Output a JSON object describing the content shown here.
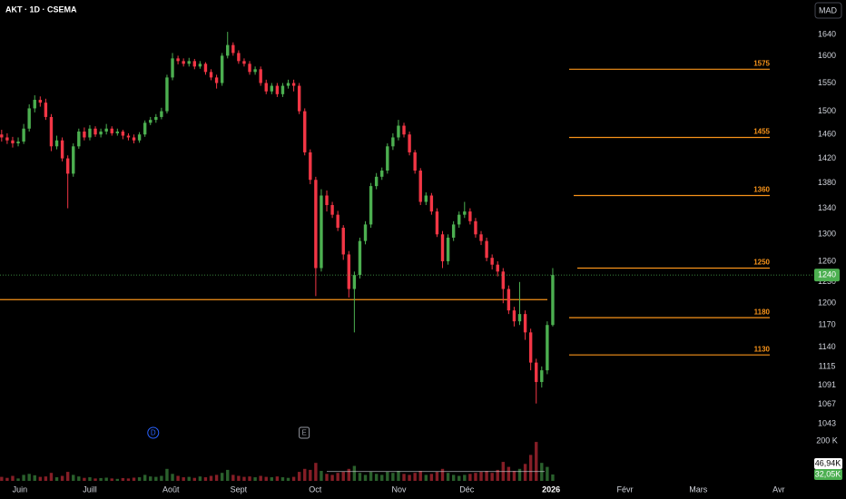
{
  "chart_data": {
    "type": "candlestick",
    "title": "AKT · 1D · CSEMA",
    "currency": "MAD",
    "log_scale": true,
    "ylim": [
      1029,
      1707
    ],
    "yticks": [
      1640,
      1600,
      1550,
      1500,
      1460,
      1420,
      1380,
      1340,
      1300,
      1260,
      1230,
      1200,
      1170,
      1140,
      1115,
      1091,
      1067,
      1043
    ],
    "xlim": [
      -0.3,
      143
    ],
    "xticks": [
      {
        "value": 3.3,
        "label": "Juin"
      },
      {
        "value": 16,
        "label": "Juill"
      },
      {
        "value": 30.7,
        "label": "Août"
      },
      {
        "value": 43,
        "label": "Sept"
      },
      {
        "value": 56.9,
        "label": "Oct"
      },
      {
        "value": 72.1,
        "label": "Nov"
      },
      {
        "value": 84.4,
        "label": "Déc"
      },
      {
        "value": 99.7,
        "label": "2026"
      },
      {
        "value": 113.1,
        "label": "Févr"
      },
      {
        "value": 126.4,
        "label": "Mars"
      },
      {
        "value": 141,
        "label": "Avr"
      }
    ],
    "up_color": "#4caf50",
    "down_color": "#f23645",
    "open": [
      1460,
      1455,
      1450,
      1445,
      1448,
      1470,
      1505,
      1520,
      1515,
      1490,
      1440,
      1450,
      1420,
      1395,
      1440,
      1465,
      1455,
      1470,
      1460,
      1465,
      1470,
      1462,
      1465,
      1458,
      1455,
      1450,
      1460,
      1480,
      1485,
      1490,
      1500,
      1560,
      1595,
      1590,
      1585,
      1590,
      1580,
      1585,
      1570,
      1560,
      1550,
      1600,
      1620,
      1605,
      1590,
      1585,
      1570,
      1575,
      1550,
      1535,
      1545,
      1530,
      1545,
      1550,
      1545,
      1500,
      1430,
      1385,
      1250,
      1360,
      1345,
      1330,
      1310,
      1270,
      1220,
      1240,
      1290,
      1315,
      1375,
      1390,
      1400,
      1440,
      1455,
      1475,
      1460,
      1430,
      1400,
      1350,
      1360,
      1335,
      1300,
      1260,
      1295,
      1315,
      1330,
      1335,
      1320,
      1300,
      1290,
      1265,
      1255,
      1245,
      1220,
      1190,
      1175,
      1185,
      1160,
      1120,
      1095,
      1110,
      1170
    ],
    "high": [
      1468,
      1462,
      1456,
      1455,
      1478,
      1512,
      1528,
      1526,
      1522,
      1495,
      1458,
      1455,
      1425,
      1445,
      1470,
      1472,
      1476,
      1474,
      1470,
      1478,
      1474,
      1470,
      1468,
      1462,
      1460,
      1464,
      1484,
      1490,
      1495,
      1506,
      1565,
      1605,
      1600,
      1595,
      1596,
      1594,
      1590,
      1588,
      1575,
      1565,
      1605,
      1645,
      1625,
      1610,
      1595,
      1590,
      1580,
      1580,
      1556,
      1550,
      1550,
      1550,
      1556,
      1556,
      1550,
      1505,
      1435,
      1390,
      1370,
      1368,
      1350,
      1336,
      1314,
      1275,
      1245,
      1295,
      1320,
      1380,
      1396,
      1405,
      1445,
      1462,
      1485,
      1480,
      1465,
      1434,
      1404,
      1365,
      1364,
      1340,
      1305,
      1300,
      1320,
      1335,
      1350,
      1340,
      1325,
      1305,
      1295,
      1270,
      1260,
      1250,
      1225,
      1195,
      1230,
      1190,
      1165,
      1125,
      1115,
      1175,
      1250
    ],
    "low": [
      1448,
      1444,
      1438,
      1440,
      1444,
      1465,
      1498,
      1508,
      1485,
      1432,
      1435,
      1415,
      1340,
      1390,
      1436,
      1450,
      1450,
      1456,
      1455,
      1460,
      1458,
      1458,
      1452,
      1450,
      1445,
      1446,
      1456,
      1476,
      1480,
      1486,
      1496,
      1555,
      1584,
      1580,
      1580,
      1575,
      1576,
      1565,
      1555,
      1540,
      1545,
      1595,
      1600,
      1585,
      1580,
      1565,
      1565,
      1545,
      1530,
      1530,
      1525,
      1525,
      1540,
      1535,
      1495,
      1425,
      1378,
      1210,
      1245,
      1335,
      1325,
      1305,
      1262,
      1208,
      1160,
      1235,
      1285,
      1310,
      1370,
      1385,
      1395,
      1434,
      1450,
      1455,
      1425,
      1395,
      1345,
      1345,
      1330,
      1296,
      1250,
      1255,
      1290,
      1310,
      1325,
      1315,
      1295,
      1284,
      1260,
      1248,
      1238,
      1200,
      1185,
      1168,
      1170,
      1150,
      1110,
      1068,
      1088,
      1105,
      1168
    ],
    "close": [
      1455,
      1450,
      1445,
      1448,
      1470,
      1505,
      1520,
      1515,
      1490,
      1440,
      1450,
      1420,
      1395,
      1440,
      1465,
      1455,
      1470,
      1460,
      1465,
      1470,
      1462,
      1465,
      1458,
      1455,
      1450,
      1460,
      1480,
      1485,
      1490,
      1500,
      1560,
      1595,
      1590,
      1585,
      1590,
      1580,
      1585,
      1570,
      1560,
      1550,
      1600,
      1620,
      1605,
      1590,
      1585,
      1570,
      1575,
      1550,
      1535,
      1545,
      1530,
      1545,
      1550,
      1545,
      1500,
      1430,
      1385,
      1250,
      1360,
      1345,
      1330,
      1310,
      1270,
      1220,
      1240,
      1290,
      1315,
      1375,
      1390,
      1400,
      1440,
      1455,
      1475,
      1460,
      1430,
      1400,
      1350,
      1360,
      1335,
      1300,
      1260,
      1295,
      1315,
      1330,
      1335,
      1320,
      1300,
      1290,
      1265,
      1255,
      1245,
      1220,
      1190,
      1175,
      1185,
      1160,
      1120,
      1095,
      1110,
      1170,
      1240
    ],
    "volumes": [
      20000,
      15000,
      25000,
      12000,
      30000,
      35000,
      28000,
      20000,
      22000,
      40000,
      18000,
      25000,
      45000,
      30000,
      22000,
      15000,
      18000,
      12000,
      14000,
      16000,
      12000,
      10000,
      14000,
      12000,
      16000,
      18000,
      30000,
      22000,
      20000,
      25000,
      60000,
      35000,
      25000,
      18000,
      20000,
      15000,
      22000,
      18000,
      25000,
      30000,
      40000,
      55000,
      30000,
      25000,
      20000,
      22000,
      18000,
      25000,
      20000,
      18000,
      22000,
      18000,
      15000,
      20000,
      45000,
      60000,
      55000,
      90000,
      50000,
      35000,
      30000,
      40000,
      45000,
      60000,
      75000,
      40000,
      30000,
      45000,
      35000,
      30000,
      45000,
      40000,
      50000,
      35000,
      30000,
      40000,
      50000,
      30000,
      35000,
      45000,
      60000,
      40000,
      30000,
      25000,
      30000,
      35000,
      40000,
      45000,
      50000,
      40000,
      55000,
      95000,
      70000,
      50000,
      60000,
      85000,
      130000,
      195000,
      90000,
      70000,
      32050
    ],
    "volume_ylim": [
      0,
      210000
    ],
    "volume_yticks": [
      {
        "value": 200000,
        "label": "200 K"
      }
    ],
    "volume_ma": {
      "value": 46940,
      "label": "46,94K"
    },
    "volume_last_label": "32,05K",
    "levels": [
      1575,
      1455,
      1360,
      1250,
      1180,
      1130
    ],
    "level_color": "#f7931a",
    "support_line": 1205,
    "events": [
      {
        "label": "D",
        "x": 27.5,
        "color": "#2962ff"
      },
      {
        "label": "E",
        "x": 54.9,
        "color": "#9598a1"
      }
    ]
  }
}
